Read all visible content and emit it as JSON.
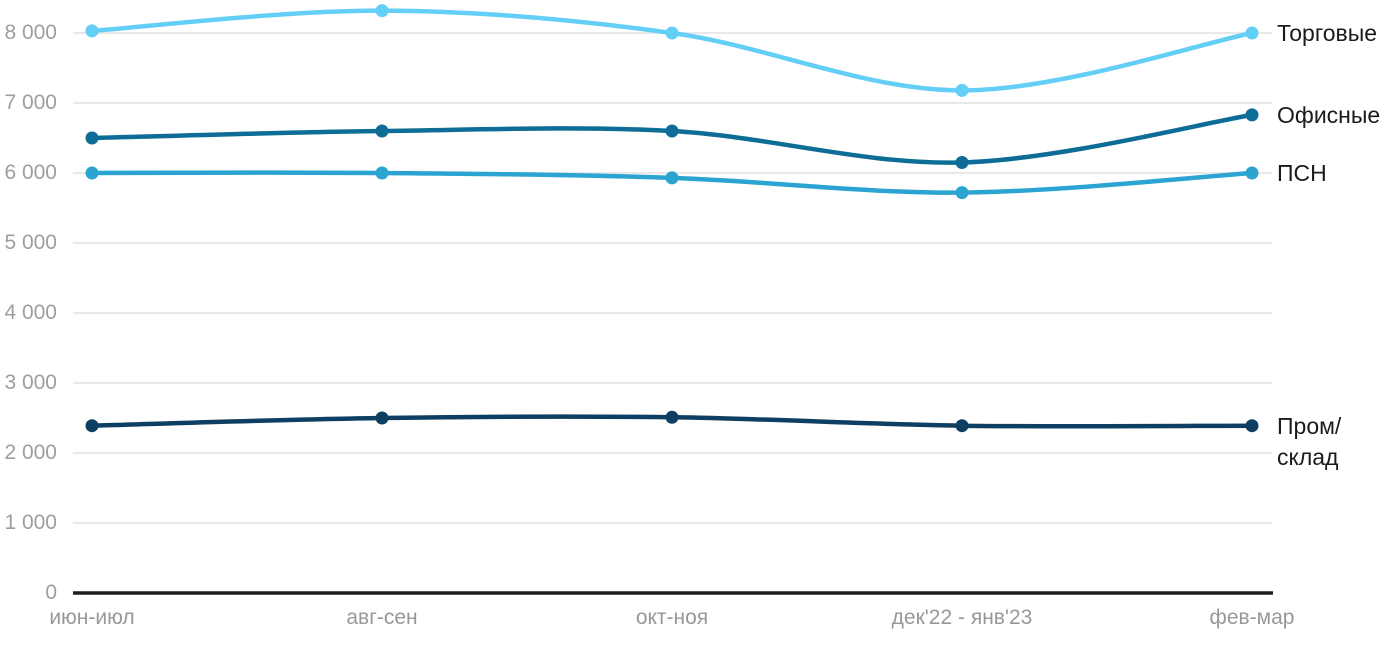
{
  "chart_data": {
    "type": "line",
    "style": "spline",
    "grid": "horizontal",
    "legend_position": "right-inline",
    "ylim": [
      0,
      8500
    ],
    "y_tick_interval": 1000,
    "y_ticks": [
      "0",
      "1 000",
      "2 000",
      "3 000",
      "4 000",
      "5 000",
      "6 000",
      "7 000",
      "8 000"
    ],
    "categories": [
      "июн-июл",
      "авг-сен",
      "окт-ноя",
      "дек'22 - янв'23",
      "фев-мар"
    ],
    "series": [
      {
        "name": "Торговые",
        "display_label": "Торговые",
        "color": "#63cff7",
        "values": [
          8030,
          8320,
          8000,
          7180,
          8000
        ]
      },
      {
        "name": "Офисные",
        "display_label": "Офисные",
        "color": "#0d6d96",
        "values": [
          6500,
          6600,
          6600,
          6150,
          6830
        ]
      },
      {
        "name": "ПСН",
        "display_label": "ПСН",
        "color": "#2ba4d1",
        "values": [
          6000,
          6000,
          5930,
          5720,
          6000
        ]
      },
      {
        "name": "Пром/склад",
        "display_label": "Пром/\nсклад",
        "color": "#0e3f62",
        "values": [
          2390,
          2500,
          2510,
          2390,
          2390
        ]
      }
    ]
  },
  "colors": {
    "background": "#ffffff",
    "gridline": "#e8e8e8",
    "axis_line": "#1d1d1d",
    "tick_text": "#9e9e9e",
    "series_label_text": "#1b1b1b"
  }
}
